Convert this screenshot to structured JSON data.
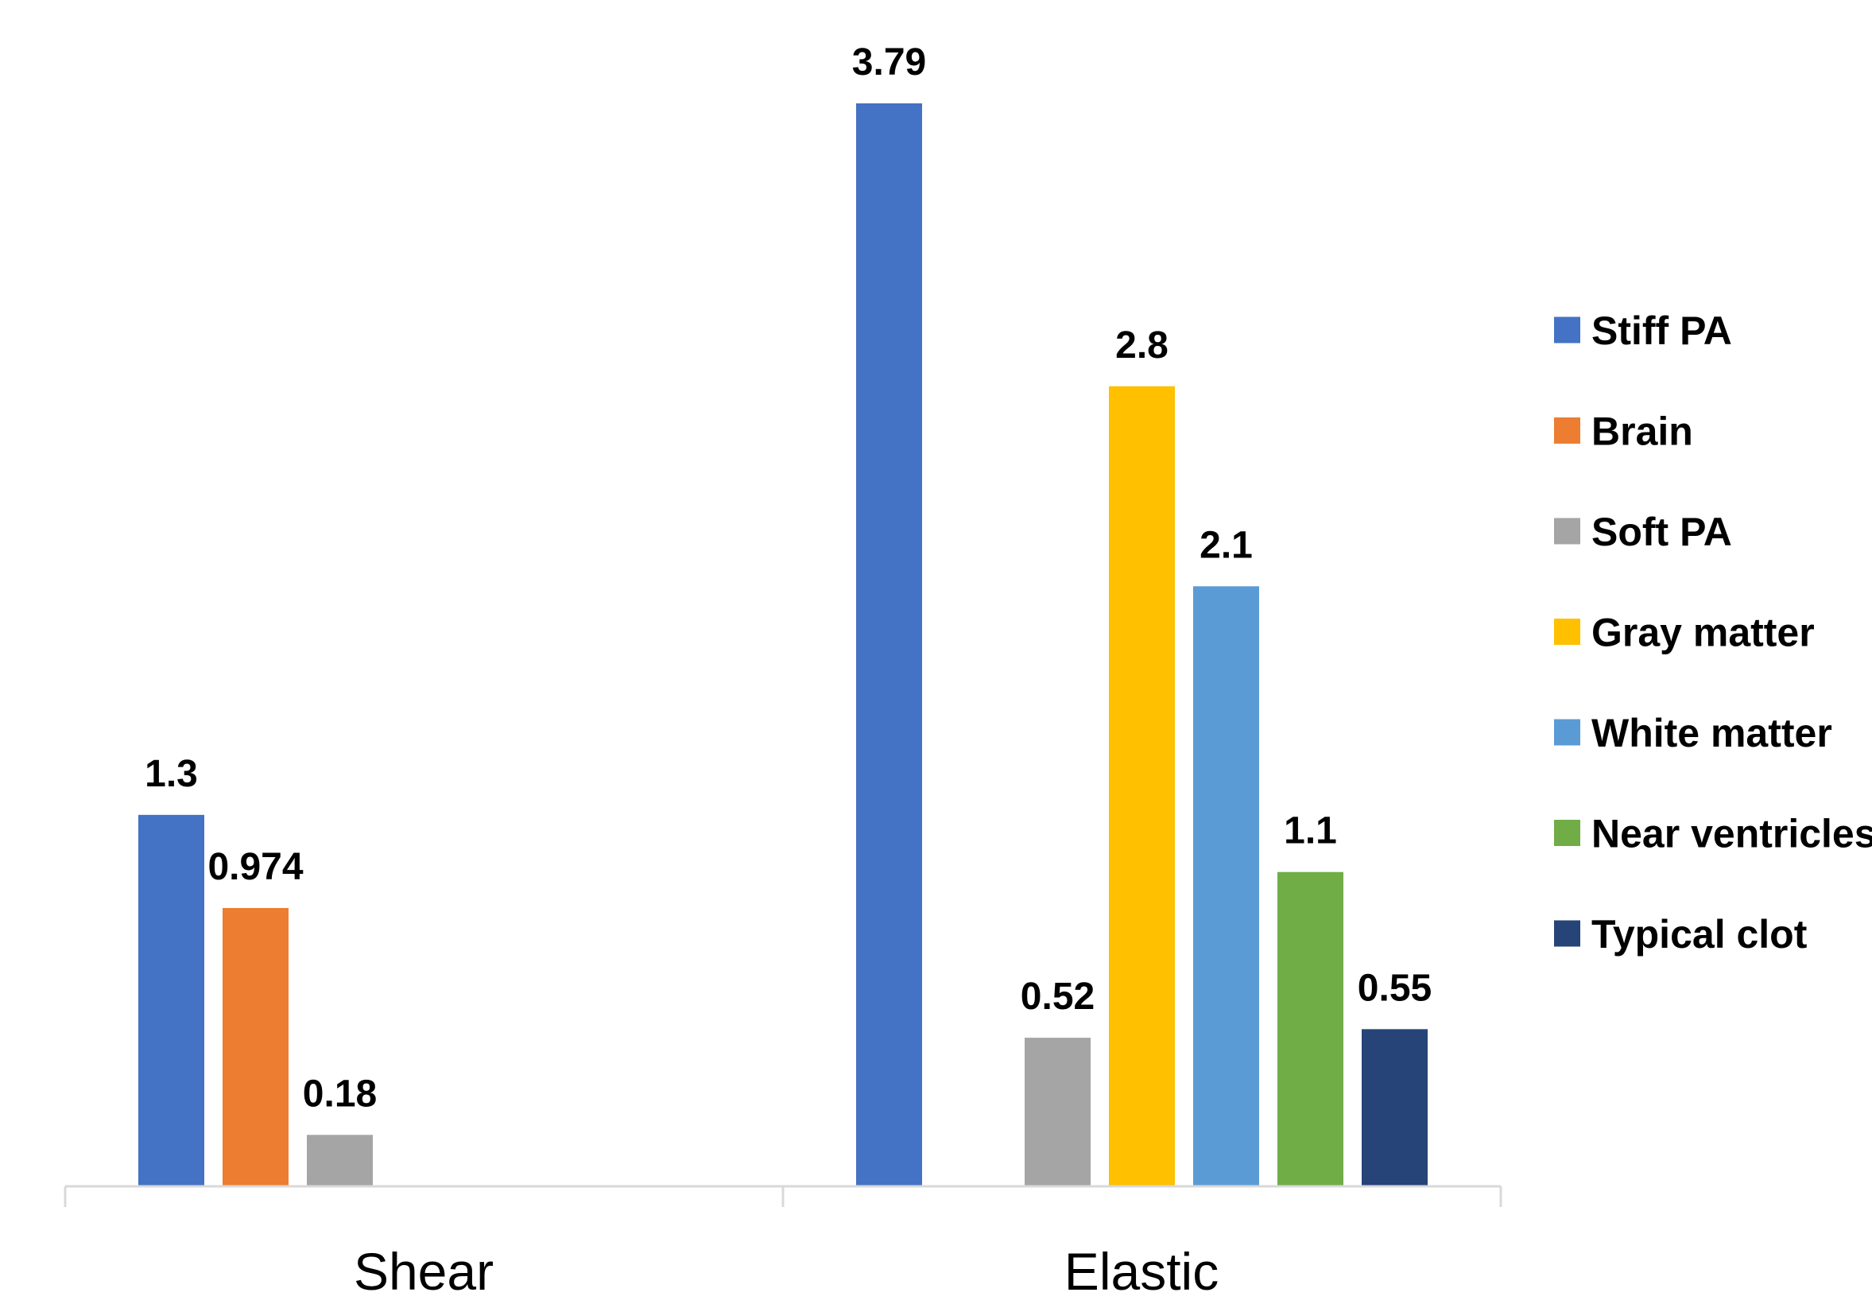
{
  "chart_data": {
    "type": "bar",
    "title": "",
    "xlabel": "",
    "ylabel": "",
    "ylim": [
      0,
      3.79
    ],
    "grid": false,
    "legend_position": "right",
    "categories": [
      "Shear",
      "Elastic"
    ],
    "series": [
      {
        "name": "Stiff PA",
        "color": "#4472C4",
        "values": [
          1.3,
          3.79
        ],
        "labels": [
          "1.3",
          "3.79"
        ]
      },
      {
        "name": "Brain",
        "color": "#ED7D31",
        "values": [
          0.974,
          null
        ],
        "labels": [
          "0.974",
          ""
        ]
      },
      {
        "name": "Soft PA",
        "color": "#A5A5A5",
        "values": [
          0.18,
          0.52
        ],
        "labels": [
          "0.18",
          "0.52"
        ]
      },
      {
        "name": "Gray matter",
        "color": "#FFC000",
        "values": [
          null,
          2.8
        ],
        "labels": [
          "",
          "2.8"
        ]
      },
      {
        "name": "White matter",
        "color": "#5B9BD5",
        "values": [
          null,
          2.1
        ],
        "labels": [
          "",
          "2.1"
        ]
      },
      {
        "name": "Near ventricles",
        "color": "#70AD47",
        "values": [
          null,
          1.1
        ],
        "labels": [
          "",
          "1.1"
        ]
      },
      {
        "name": "Typical clot",
        "color": "#264478",
        "values": [
          null,
          0.55
        ],
        "labels": [
          "",
          "0.55"
        ]
      }
    ]
  }
}
